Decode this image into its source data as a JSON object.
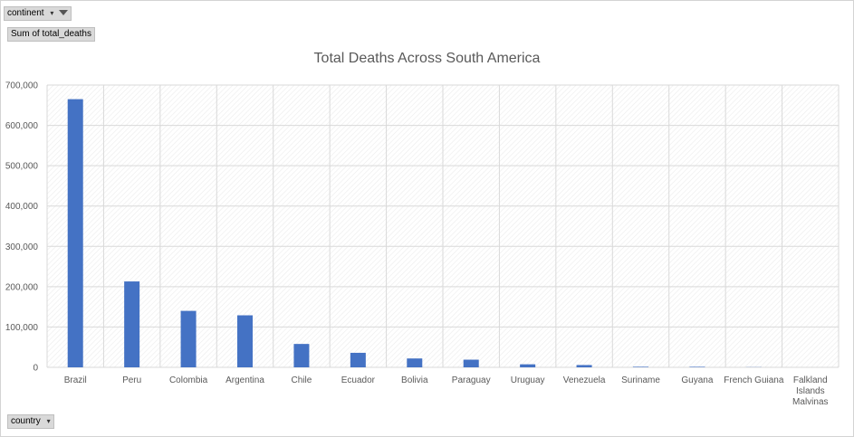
{
  "filters": {
    "continent_label": "continent",
    "sum_field_label": "Sum of total_deaths",
    "country_label": "country"
  },
  "chart_data": {
    "type": "bar",
    "title": "Total Deaths Across South America",
    "categories": [
      "Brazil",
      "Peru",
      "Colombia",
      "Argentina",
      "Chile",
      "Ecuador",
      "Bolivia",
      "Paraguay",
      "Uruguay",
      "Venezuela",
      "Suriname",
      "Guyana",
      "French Guiana",
      "Falkland Islands Malvinas"
    ],
    "values": [
      665000,
      213000,
      140000,
      129000,
      58000,
      36000,
      22000,
      19000,
      7500,
      5700,
      1400,
      1300,
      400,
      0
    ],
    "ylim": [
      0,
      700000
    ],
    "yticks": [
      0,
      100000,
      200000,
      300000,
      400000,
      500000,
      600000,
      700000
    ],
    "ytick_labels": [
      "0",
      "100,000",
      "200,000",
      "300,000",
      "400,000",
      "500,000",
      "600,000",
      "700,000"
    ],
    "xlabel": "",
    "ylabel": "",
    "grid": true,
    "bar_color": "#4472c4"
  }
}
